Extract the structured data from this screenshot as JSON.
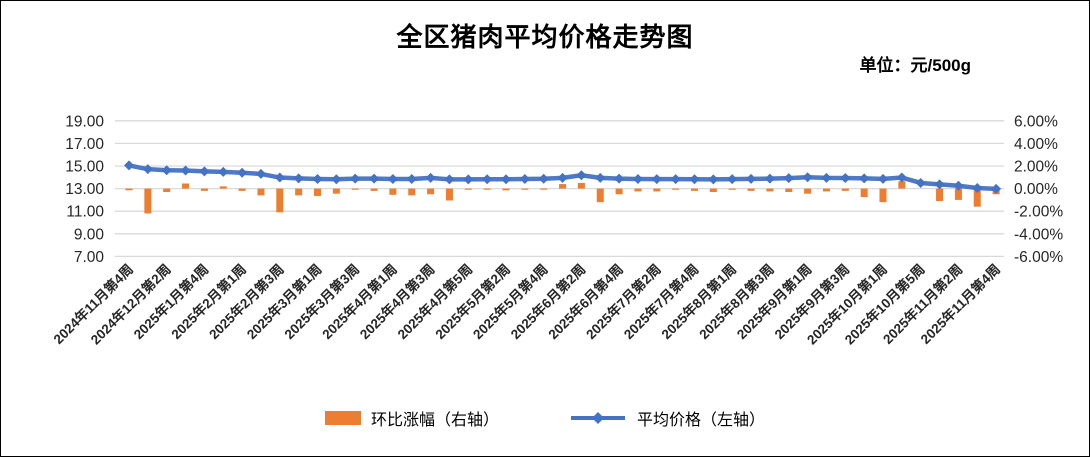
{
  "chart_data": {
    "type": "combo-line-bar",
    "title": "全区猪肉平均价格走势图",
    "unit_label": "单位：元/500g",
    "grid": "horizontal",
    "legend_position": "bottom",
    "colors": {
      "bar": "#ED7D31",
      "line": "#4472C4",
      "gridline": "#D9D9D9",
      "axis_text": "#262626"
    },
    "left_axis": {
      "min": 7,
      "max": 19,
      "step": 2,
      "tick_labels": [
        "19.00",
        "17.00",
        "15.00",
        "13.00",
        "11.00",
        "9.00",
        "7.00"
      ]
    },
    "right_axis": {
      "min": -6,
      "max": 6,
      "step": 2,
      "tick_labels": [
        "6.00%",
        "4.00%",
        "2.00%",
        "0.00%",
        "-2.00%",
        "-4.00%",
        "-6.00%"
      ]
    },
    "x_tick_labels": [
      "2024年11月第4周",
      "2024年12月第2周",
      "2025年1月第4周",
      "2025年2月第1周",
      "2025年2月第3周",
      "2025年3月第1周",
      "2025年3月第3周",
      "2025年4月第1周",
      "2025年4月第3周",
      "2025年4月第5周",
      "2025年5月第2周",
      "2025年5月第4周",
      "2025年6月第2周",
      "2025年6月第4周",
      "2025年7月第2周",
      "2025年7月第4周",
      "2025年8月第1周",
      "2025年8月第3周",
      "2025年9月第1周",
      "2025年9月第3周",
      "2025年10月第1周",
      "2025年10月第5周",
      "2025年11月第2周",
      "2025年11月第4周"
    ],
    "x_label_every": 2,
    "n_points": 47,
    "series": [
      {
        "name": "环比涨幅（右轴）",
        "type": "bar",
        "axis": "right",
        "color": "#ED7D31",
        "values": [
          -0.15,
          -2.2,
          -0.3,
          0.45,
          -0.2,
          0.2,
          -0.2,
          -0.6,
          -2.1,
          -0.6,
          -0.65,
          -0.45,
          -0.1,
          -0.2,
          -0.55,
          -0.6,
          -0.5,
          -1.05,
          -0.1,
          -0.1,
          -0.15,
          -0.1,
          -0.1,
          0.4,
          0.5,
          -1.2,
          -0.5,
          -0.25,
          -0.25,
          -0.1,
          -0.2,
          -0.3,
          -0.1,
          -0.2,
          -0.25,
          -0.3,
          -0.45,
          -0.25,
          -0.2,
          -0.75,
          -1.2,
          0.65,
          null,
          -1.1,
          -1.0,
          -1.6,
          -0.5
        ]
      },
      {
        "name": "平均价格（左轴）",
        "type": "line",
        "axis": "left",
        "color": "#4472C4",
        "values": [
          15.05,
          14.72,
          14.62,
          14.6,
          14.52,
          14.48,
          14.4,
          14.3,
          13.98,
          13.9,
          13.85,
          13.83,
          13.88,
          13.88,
          13.85,
          13.85,
          13.95,
          13.82,
          13.82,
          13.83,
          13.83,
          13.85,
          13.87,
          13.95,
          14.18,
          13.95,
          13.88,
          13.85,
          13.84,
          13.84,
          13.83,
          13.82,
          13.84,
          13.86,
          13.88,
          13.93,
          14.0,
          13.95,
          13.94,
          13.9,
          13.86,
          13.98,
          13.5,
          13.37,
          13.25,
          13.05,
          12.98
        ]
      }
    ]
  }
}
